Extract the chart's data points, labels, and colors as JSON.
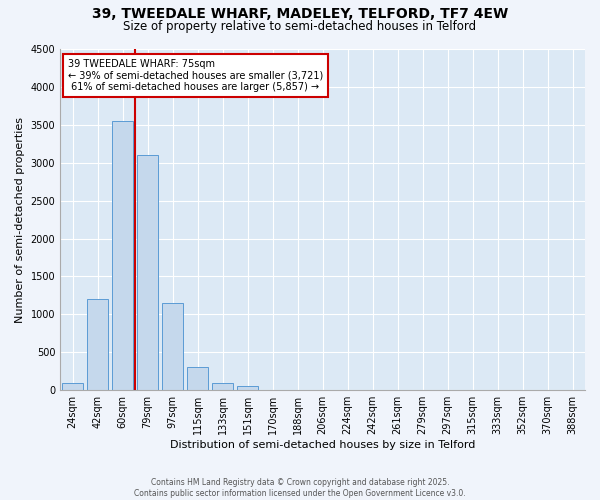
{
  "title_line1": "39, TWEEDALE WHARF, MADELEY, TELFORD, TF7 4EW",
  "title_line2": "Size of property relative to semi-detached houses in Telford",
  "xlabel": "Distribution of semi-detached houses by size in Telford",
  "ylabel": "Number of semi-detached properties",
  "categories": [
    "24sqm",
    "42sqm",
    "60sqm",
    "79sqm",
    "97sqm",
    "115sqm",
    "133sqm",
    "151sqm",
    "170sqm",
    "188sqm",
    "206sqm",
    "224sqm",
    "242sqm",
    "261sqm",
    "279sqm",
    "297sqm",
    "315sqm",
    "333sqm",
    "352sqm",
    "370sqm",
    "388sqm"
  ],
  "values": [
    100,
    1200,
    3550,
    3100,
    1150,
    300,
    100,
    50,
    5,
    0,
    0,
    0,
    0,
    0,
    0,
    0,
    0,
    0,
    0,
    0,
    0
  ],
  "bar_color": "#c5d8ec",
  "bar_edge_color": "#5b9bd5",
  "property_sqm": 75,
  "pct_smaller": 39,
  "pct_larger": 61,
  "count_smaller": 3721,
  "count_larger": 5857,
  "annotation_box_facecolor": "#ffffff",
  "annotation_box_edgecolor": "#cc0000",
  "red_line_color": "#cc0000",
  "ylim": [
    0,
    4500
  ],
  "yticks": [
    0,
    500,
    1000,
    1500,
    2000,
    2500,
    3000,
    3500,
    4000,
    4500
  ],
  "footer_line1": "Contains HM Land Registry data © Crown copyright and database right 2025.",
  "footer_line2": "Contains public sector information licensed under the Open Government Licence v3.0.",
  "fig_bg_color": "#f0f4fb",
  "plot_bg_color": "#dce9f5",
  "grid_color": "#ffffff",
  "title_fontsize": 10,
  "subtitle_fontsize": 8.5,
  "tick_fontsize": 7,
  "label_fontsize": 8,
  "footer_fontsize": 5.5
}
